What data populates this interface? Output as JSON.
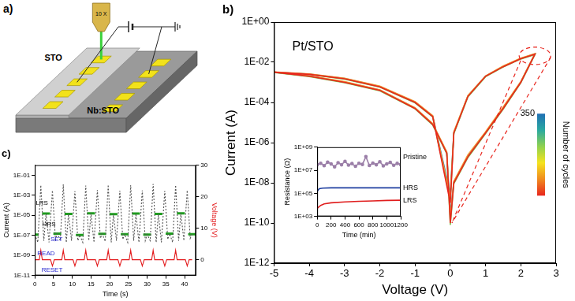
{
  "diagram": {
    "label": "a)",
    "objective": "10 X",
    "film": "STO",
    "substrate": "Nb:STO"
  },
  "chart_data": [
    {
      "type": "line",
      "title": "b)",
      "xlabel": "Voltage (V)",
      "ylabel": "Current (A)",
      "log": "y",
      "grid": false,
      "xlim": [
        -5,
        3
      ],
      "xticks": [
        -5,
        -4,
        -3,
        -2,
        -1,
        0,
        1,
        2,
        3
      ],
      "ylim": [
        1e-12,
        1
      ],
      "yticks": [
        {
          "value": 1e-12,
          "label": "1E-12"
        },
        {
          "value": 1e-10,
          "label": "1E-10"
        },
        {
          "value": 1e-08,
          "label": "1E-08"
        },
        {
          "value": 1e-06,
          "label": "1E-06"
        },
        {
          "value": 0.0001,
          "label": "1E-04"
        },
        {
          "value": 0.01,
          "label": "1E-02"
        },
        {
          "value": 1,
          "label": "1E+00"
        }
      ],
      "annotations": [
        {
          "text": "Pt/STO",
          "x": -3.9,
          "y": 0.06
        }
      ],
      "colorbar": {
        "label": "Number of cycles",
        "range": [
          1,
          350
        ],
        "ticks": [
          350
        ],
        "colors": [
          "#e8261e",
          "#f08a1e",
          "#f5e31e",
          "#8fd14f",
          "#2aa9a0",
          "#1f6fb4"
        ]
      },
      "series": [
        {
          "color": "#e8261e",
          "x": [
            0,
            -0.5,
            -1,
            -2,
            -3,
            -4,
            -5,
            -4,
            -3,
            -2,
            -1,
            -0.5,
            -0.1,
            0,
            0.1,
            0.5,
            1,
            1.5,
            2,
            2.4,
            2,
            1.5,
            1,
            0.5,
            0.1,
            0
          ],
          "values": [
            1e-09,
            2e-05,
            0.0001,
            0.0006,
            0.0015,
            0.0025,
            0.0032,
            0.002,
            0.001,
            0.0004,
            5e-05,
            8e-06,
            3e-07,
            1e-10,
            1e-08,
            2e-07,
            3e-06,
            5e-05,
            0.001,
            0.025,
            0.015,
            0.006,
            0.002,
            0.0002,
            3e-06,
            1e-09
          ]
        },
        {
          "color": "#f29a2e",
          "x": [
            0,
            -0.5,
            -1,
            -2,
            -3,
            -4,
            -5,
            -4,
            -3,
            -2,
            -1,
            -0.5,
            -0.1,
            0,
            0.1,
            0.5,
            1,
            1.5,
            2,
            2.4,
            2,
            1.5,
            1,
            0.5,
            0.1,
            0
          ],
          "values": [
            2e-09,
            2.2e-05,
            0.00011,
            0.00065,
            0.0016,
            0.0026,
            0.0033,
            0.0021,
            0.0011,
            0.00042,
            5.5e-05,
            9e-06,
            3.5e-07,
            2e-10,
            1.2e-08,
            2.5e-07,
            3.5e-06,
            6e-05,
            0.0011,
            0.027,
            0.016,
            0.0065,
            0.0021,
            0.00022,
            3.5e-06,
            2e-09
          ]
        },
        {
          "color": "#7cc24a",
          "x": [
            0,
            -0.5,
            -1,
            -2,
            -3,
            -4,
            -5,
            -4,
            -3,
            -2,
            -1,
            -0.5,
            -0.1,
            0,
            0.1,
            0.5,
            1,
            1.5,
            2,
            2.4,
            2,
            1.5,
            1,
            0.5,
            0.1,
            0
          ],
          "values": [
            1.5e-09,
            1.9e-05,
            9.5e-05,
            0.00058,
            0.00145,
            0.00245,
            0.0031,
            0.00195,
            0.00095,
            0.00038,
            4.8e-05,
            7.5e-06,
            2.8e-07,
            8e-11,
            9e-09,
            1.8e-07,
            2.8e-06,
            4.6e-05,
            0.00095,
            0.024,
            0.0145,
            0.0058,
            0.0019,
            0.00019,
            2.8e-06,
            1.5e-09
          ]
        },
        {
          "color": "#2b7bba",
          "x": [
            0,
            -0.5,
            -1,
            -2,
            -3,
            -4,
            -5,
            -4,
            -3,
            -2,
            -1,
            -0.5,
            -0.1,
            0,
            0.1,
            0.5,
            1,
            1.5,
            2,
            2.4,
            2,
            1.5,
            1,
            0.5,
            0.1,
            0
          ],
          "values": [
            3e-09,
            2.1e-05,
            0.000105,
            0.00062,
            0.00155,
            0.00255,
            0.0032,
            0.00205,
            0.00105,
            0.00041,
            5.2e-05,
            8.5e-06,
            3.2e-07,
            3e-10,
            1.1e-08,
            2.2e-07,
            3.2e-06,
            5.5e-05,
            0.00105,
            0.026,
            0.0155,
            0.0062,
            0.00205,
            0.00021,
            3.2e-06,
            3e-09
          ]
        }
      ]
    },
    {
      "type": "line",
      "xlabel": "Time (min)",
      "ylabel": "Resistance (Ω)",
      "log": "y",
      "grid": false,
      "xlim": [
        0,
        1200
      ],
      "xticks": [
        0,
        200,
        400,
        600,
        800,
        1000,
        1200
      ],
      "ylim": [
        1000,
        1000000000.0
      ],
      "yticks": [
        {
          "value": 1000,
          "label": "1E+03"
        },
        {
          "value": 100000,
          "label": "1E+05"
        },
        {
          "value": 10000000,
          "label": "1E+07"
        },
        {
          "value": 1000000000,
          "label": "1E+09"
        }
      ],
      "series": [
        {
          "name": "Pristine",
          "color": "#9b7fa8",
          "marker": "circle",
          "x": [
            0,
            50,
            100,
            150,
            200,
            250,
            300,
            350,
            400,
            450,
            500,
            550,
            600,
            650,
            700,
            750,
            800,
            850,
            900,
            950,
            1000,
            1050,
            1100,
            1150,
            1200
          ],
          "values": [
            30000000.0,
            40000000.0,
            25000000.0,
            50000000.0,
            35000000.0,
            20000000.0,
            45000000.0,
            30000000.0,
            60000000.0,
            28000000.0,
            38000000.0,
            22000000.0,
            40000000.0,
            32000000.0,
            150000000.0,
            26000000.0,
            42000000.0,
            30000000.0,
            55000000.0,
            24000000.0,
            36000000.0,
            48000000.0,
            27000000.0,
            39000000.0,
            31000000.0
          ]
        },
        {
          "name": "HRS",
          "color": "#1f3fa0",
          "x": [
            0,
            30,
            80,
            200,
            400,
            600,
            800,
            1000,
            1200
          ],
          "values": [
            150000,
            250000,
            280000,
            300000,
            300000,
            300000,
            300000,
            300000,
            300000
          ]
        },
        {
          "name": "LRS",
          "color": "#e01e1e",
          "x": [
            0,
            50,
            100,
            200,
            400,
            600,
            800,
            1000,
            1200
          ],
          "values": [
            5000,
            9000,
            12000,
            15000,
            18000,
            20000,
            22000,
            24000,
            25000
          ]
        }
      ]
    },
    {
      "type": "line",
      "title": "c)",
      "xlabel": "Time (s)",
      "ylabel": "Current (A)",
      "y2label": "Voltage (V)",
      "log": "y",
      "grid": false,
      "xlim": [
        0,
        43
      ],
      "xticks": [
        0,
        5,
        10,
        15,
        20,
        25,
        30,
        35,
        40
      ],
      "ylim": [
        1e-11,
        1
      ],
      "yticks": [
        {
          "value": 1e-11,
          "label": "1E-11"
        },
        {
          "value": 1e-09,
          "label": "1E-09"
        },
        {
          "value": 1e-07,
          "label": "1E-07"
        },
        {
          "value": 1e-05,
          "label": "1E-05"
        },
        {
          "value": 0.001,
          "label": "1E-03"
        },
        {
          "value": 0.1,
          "label": "1E-01"
        }
      ],
      "y2lim": [
        -5,
        30
      ],
      "y2ticks": [
        0,
        10,
        20,
        30
      ],
      "annotations": [
        {
          "text": "LRS",
          "x": 1.9,
          "y": 0.00015,
          "color": "#000000"
        },
        {
          "text": "HRS",
          "x": 3.8,
          "y": 1.2e-06,
          "color": "#000000"
        },
        {
          "text": "READ",
          "x": 3.0,
          "y": 2.0,
          "axis": "y2",
          "color": "#1a1acc"
        },
        {
          "text": "SET",
          "x": 5.8,
          "y": 6.5,
          "axis": "y2",
          "color": "#1a1acc"
        },
        {
          "text": "RESET",
          "x": 4.6,
          "y": -3.4,
          "axis": "y2",
          "color": "#1a1acc"
        }
      ],
      "series": [
        {
          "type": "line",
          "color": "#555555",
          "line_style": "dotted",
          "x": [
            0,
            0.8,
            1.6,
            2.4,
            3,
            3.8,
            4.7,
            5.5,
            6,
            6.8,
            7.6,
            8.4,
            9,
            9.8,
            10.7,
            11.5,
            12,
            12.8,
            13.6,
            14.4,
            15,
            15.8,
            16.7,
            17.5,
            18,
            18.8,
            19.6,
            20.4,
            21,
            21.8,
            22.7,
            23.5,
            24,
            24.8,
            25.6,
            26.4,
            27,
            27.8,
            28.7,
            29.5,
            30,
            30.8,
            31.6,
            32.4,
            33,
            33.8,
            34.7,
            35.5,
            36,
            36.8,
            37.6,
            38.4,
            39,
            39.8,
            40.7,
            41.5,
            42
          ],
          "values": [
            1.2e-07,
            2e-08,
            0.01,
            3e-08,
            1.5e-05,
            2e-08,
            0.003,
            4e-08,
            1.5e-07,
            3e-08,
            0.012,
            2e-08,
            1.4e-05,
            3e-08,
            0.0025,
            3e-08,
            1.1e-07,
            2e-08,
            0.009,
            3e-08,
            1.6e-05,
            2e-08,
            0.0032,
            5e-08,
            1.4e-07,
            2.5e-08,
            0.011,
            2e-08,
            1.3e-05,
            3e-08,
            0.0028,
            4e-08,
            1.3e-07,
            2e-08,
            0.01,
            3e-08,
            1.5e-05,
            2e-08,
            0.003,
            3e-08,
            1.2e-07,
            3e-08,
            0.013,
            2e-08,
            1.4e-05,
            2e-08,
            0.0026,
            4e-08,
            1.5e-07,
            2e-08,
            0.01,
            3e-08,
            1.6e-05,
            3e-08,
            0.0031,
            5e-08,
            1.3e-07
          ]
        },
        {
          "type": "scatter",
          "color": "#1e9e1e",
          "marker": "line",
          "x": [
            0,
            3,
            6,
            9,
            12,
            15,
            18,
            21,
            24,
            27,
            30,
            33,
            36,
            39,
            42
          ],
          "values": [
            1.2e-07,
            1.5e-05,
            1.5e-07,
            1.4e-05,
            1.1e-07,
            1.6e-05,
            1.4e-07,
            1.3e-05,
            1.3e-07,
            1.5e-05,
            1.2e-07,
            1.4e-05,
            1.5e-07,
            1.6e-05,
            1.3e-07
          ]
        },
        {
          "type": "line",
          "color": "#e31a1c",
          "axis": "y2",
          "x": [
            0,
            1.2,
            1.6,
            2.0,
            4.2,
            4.7,
            5.2,
            6,
            7.2,
            7.6,
            8.0,
            10.2,
            10.7,
            11.2,
            12,
            13.2,
            13.6,
            14.0,
            16.2,
            16.7,
            17.2,
            18,
            19.2,
            19.6,
            20.0,
            22.2,
            22.7,
            23.2,
            24,
            25.2,
            25.6,
            26.0,
            28.2,
            28.7,
            29.2,
            30,
            31.2,
            31.6,
            32.0,
            34.2,
            34.7,
            35.2,
            36,
            37.2,
            37.6,
            38.0,
            40.2,
            40.7,
            41.2,
            42
          ],
          "values": [
            0,
            0,
            3,
            0,
            0,
            -2,
            0,
            0,
            0,
            3,
            0,
            0,
            -2,
            0,
            0,
            0,
            3,
            0,
            0,
            -2,
            0,
            0,
            0,
            3,
            0,
            0,
            -2,
            0,
            0,
            0,
            3,
            0,
            0,
            -2,
            0,
            0,
            0,
            3,
            0,
            0,
            -2,
            0,
            0,
            0,
            3,
            0,
            0,
            -2,
            0,
            0
          ]
        }
      ]
    }
  ]
}
